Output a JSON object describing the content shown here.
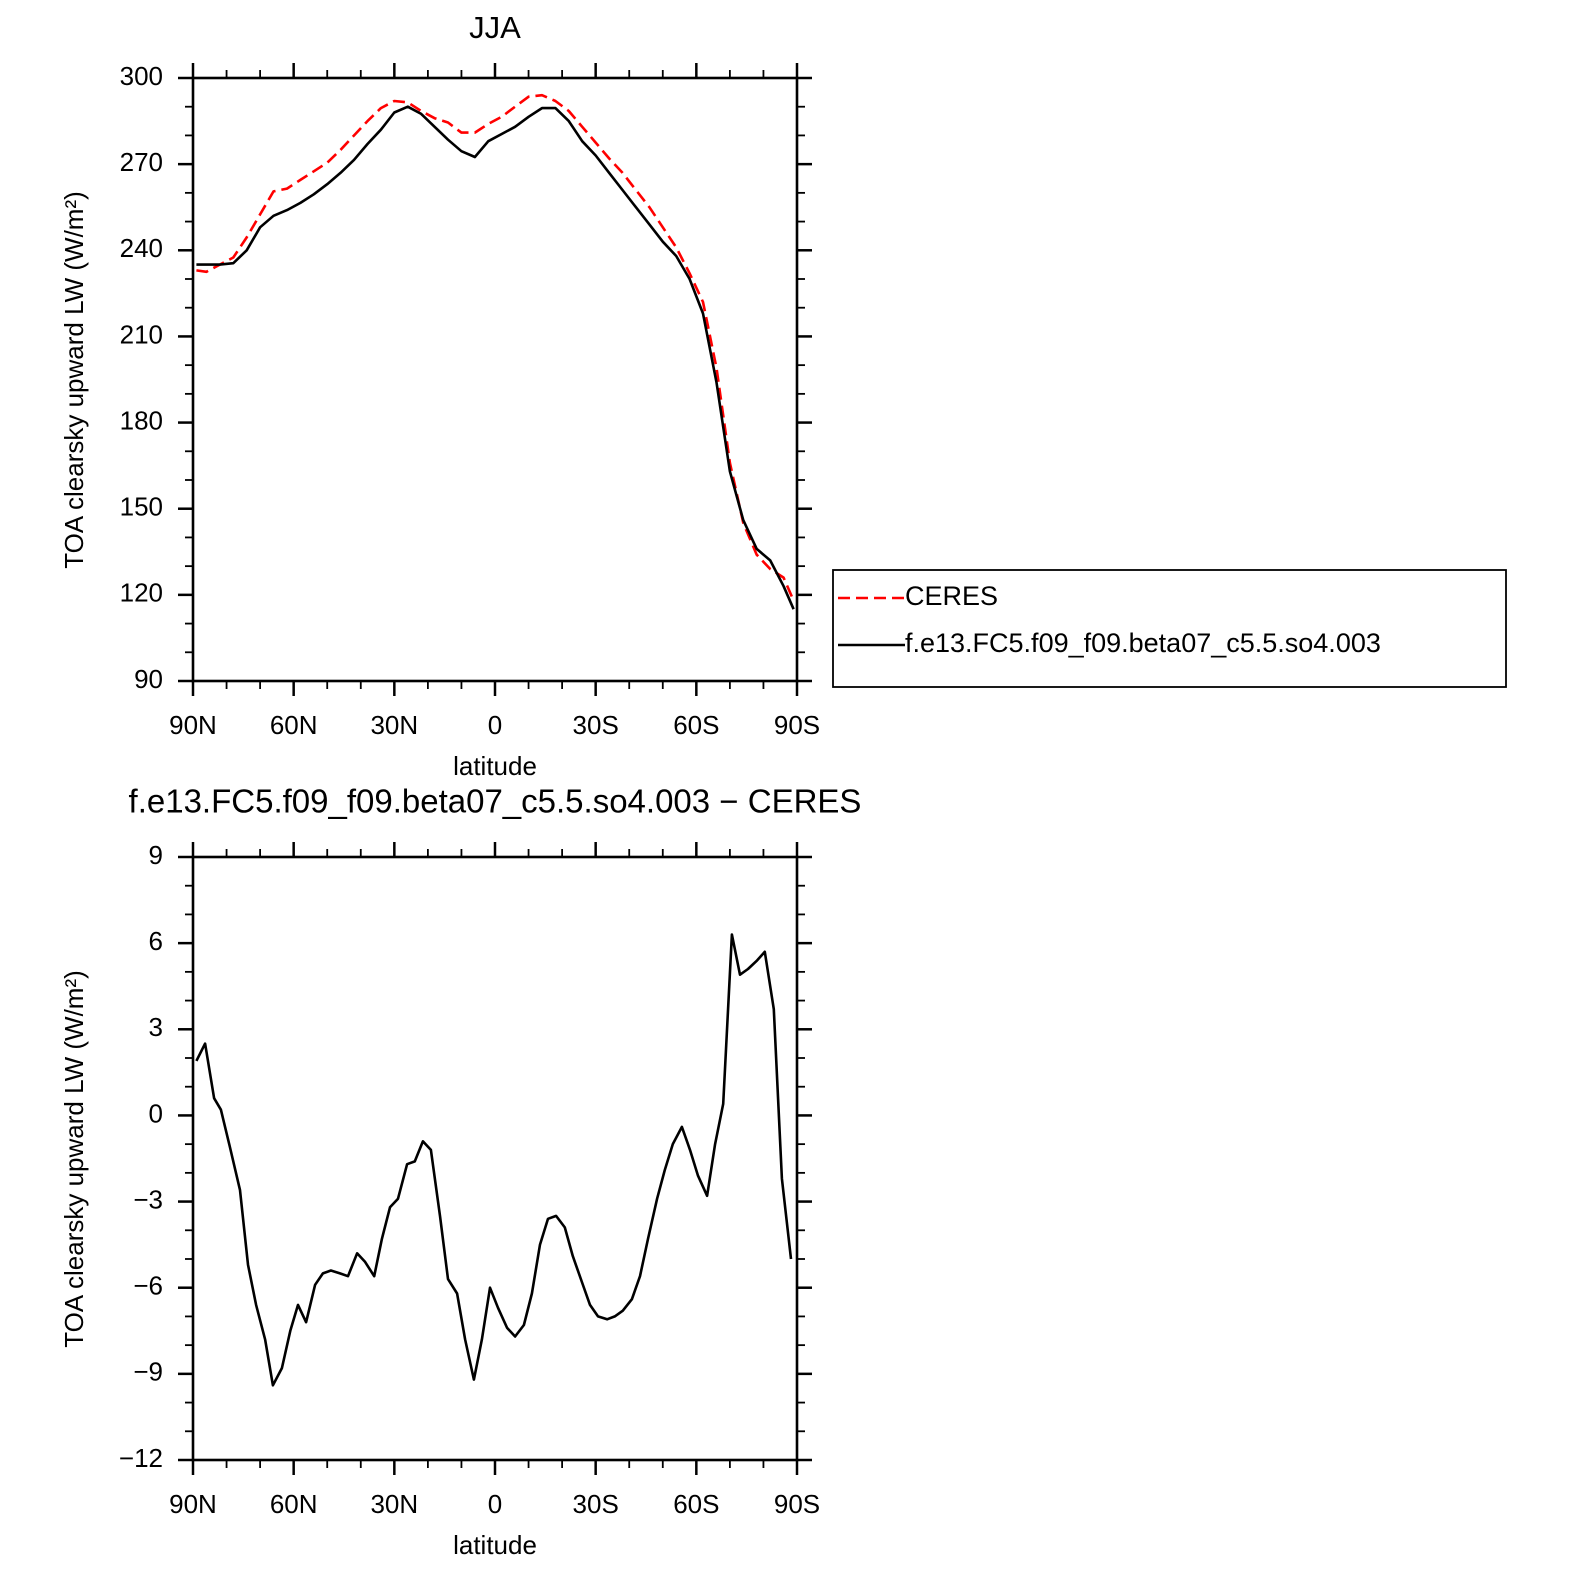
{
  "chart_data": [
    {
      "type": "line",
      "title": "JJA",
      "xlabel": "latitude",
      "ylabel": "TOA clearsky upward LW (W/m²)",
      "x": [
        89,
        86,
        82,
        78,
        74,
        70,
        66,
        62,
        58,
        54,
        50,
        46,
        42,
        38,
        34,
        30,
        26,
        22,
        18,
        14,
        10,
        6,
        2,
        -2,
        -6,
        -10,
        -14,
        -18,
        -22,
        -26,
        -30,
        -34,
        -38,
        -42,
        -46,
        -50,
        -54,
        -58,
        -62,
        -66,
        -70,
        -74,
        -78,
        -82,
        -86,
        -89
      ],
      "series": [
        {
          "name": "CERES",
          "color": "#ff0000",
          "linestyle": "dashed",
          "values": [
            233,
            232.5,
            235,
            237.5,
            244.5,
            252.5,
            260.5,
            261.5,
            264.5,
            267.5,
            270.5,
            275,
            280,
            285,
            289.5,
            292,
            291.5,
            288.5,
            286,
            284.5,
            281,
            281,
            284,
            286.5,
            290,
            293.5,
            294,
            292,
            288.5,
            283,
            277.5,
            272,
            267,
            261,
            255,
            248,
            241,
            232,
            222,
            199,
            166,
            145,
            134,
            129,
            126,
            118
          ]
        },
        {
          "name": "f.e13.FC5.f09_f09.beta07_c5.5.so4.003",
          "color": "#000000",
          "linestyle": "solid",
          "values": [
            235,
            235,
            235,
            235.5,
            240,
            248,
            252,
            254,
            256.5,
            259.5,
            263,
            267,
            271.5,
            277,
            282,
            288,
            290,
            287.5,
            283,
            278.5,
            274.5,
            272.5,
            278,
            280.5,
            283,
            286.5,
            289.5,
            289.5,
            285,
            278,
            273,
            267,
            261,
            255,
            249,
            243,
            238,
            230,
            218,
            194,
            163,
            146,
            136,
            132,
            123,
            115
          ]
        }
      ],
      "xlim": [
        90,
        -90
      ],
      "xticks": [
        {
          "value": 90,
          "label": "90N"
        },
        {
          "value": 60,
          "label": "60N"
        },
        {
          "value": 30,
          "label": "30N"
        },
        0,
        {
          "value": -30,
          "label": "30S"
        },
        {
          "value": -60,
          "label": "60S"
        },
        {
          "value": -90,
          "label": "90S"
        }
      ],
      "xminorticks": [
        80,
        70,
        50,
        40,
        20,
        10,
        -10,
        -20,
        -40,
        -50,
        -70,
        -80
      ],
      "ylim": [
        90,
        300
      ],
      "yticks": [
        90,
        120,
        150,
        180,
        210,
        240,
        270,
        300
      ],
      "yminorticks": [
        100,
        110,
        130,
        140,
        160,
        170,
        190,
        200,
        220,
        230,
        250,
        260,
        280,
        290
      ],
      "legend": "outside right"
    },
    {
      "type": "line",
      "title": "f.e13.FC5.f09_f09.beta07_c5.5.so4.003 − CERES",
      "xlabel": "latitude",
      "ylabel": "TOA clearsky upward LW (W/m²)",
      "x": [
        89,
        86.4,
        83.7,
        81.7,
        79,
        76,
        73.6,
        71.2,
        68.5,
        66.2,
        63.5,
        61,
        58.7,
        56.3,
        53.6,
        51.3,
        48.9,
        46.2,
        43.8,
        41.1,
        38.7,
        36,
        33.7,
        31.3,
        28.9,
        26.2,
        23.9,
        21.5,
        19.1,
        16.4,
        14,
        11.3,
        8.9,
        6.3,
        3.9,
        1.5,
        -0.9,
        -3.6,
        -6,
        -8.6,
        -11,
        -13.4,
        -15.8,
        -18.2,
        -20.8,
        -23.2,
        -25.9,
        -28.3,
        -30.7,
        -33.4,
        -35.7,
        -38.1,
        -40.8,
        -43.2,
        -45.6,
        -48.3,
        -50.6,
        -53,
        -55.7,
        -58.1,
        -60.5,
        -63.2,
        -65.6,
        -68,
        -70.6,
        -73,
        -75.4,
        -78.1,
        -80.4,
        -83.1,
        -85.5,
        -88.2
      ],
      "series": [
        {
          "name": "f.e13.FC5.f09_f09.beta07_c5.5.so4.003 − CERES",
          "color": "#000000",
          "linestyle": "solid",
          "values": [
            1.9,
            2.5,
            0.6,
            0.2,
            -1.1,
            -2.6,
            -5.2,
            -6.6,
            -7.8,
            -9.4,
            -8.8,
            -7.5,
            -6.6,
            -7.2,
            -5.9,
            -5.5,
            -5.4,
            -5.5,
            -5.6,
            -4.8,
            -5.1,
            -5.6,
            -4.3,
            -3.2,
            -2.9,
            -1.7,
            -1.6,
            -0.9,
            -1.2,
            -3.5,
            -5.7,
            -6.2,
            -7.8,
            -9.2,
            -7.8,
            -6,
            -6.7,
            -7.4,
            -7.7,
            -7.3,
            -6.2,
            -4.5,
            -3.6,
            -3.5,
            -3.9,
            -4.9,
            -5.8,
            -6.6,
            -7,
            -7.1,
            -7,
            -6.8,
            -6.4,
            -5.6,
            -4.3,
            -2.9,
            -1.9,
            -1,
            -0.4,
            -1.2,
            -2.1,
            -2.8,
            -1,
            0.4,
            6.3,
            4.9,
            5.1,
            5.4,
            5.7,
            3.7,
            -2.2,
            -5
          ]
        }
      ],
      "xlim": [
        90,
        -90
      ],
      "xticks": [
        {
          "value": 90,
          "label": "90N"
        },
        {
          "value": 60,
          "label": "60N"
        },
        {
          "value": 30,
          "label": "30N"
        },
        0,
        {
          "value": -30,
          "label": "30S"
        },
        {
          "value": -60,
          "label": "60S"
        },
        {
          "value": -90,
          "label": "90S"
        }
      ],
      "xminorticks": [
        80,
        70,
        50,
        40,
        20,
        10,
        -10,
        -20,
        -40,
        -50,
        -70,
        -80
      ],
      "ylim": [
        -12,
        9
      ],
      "yticks": [
        {
          "value": -12,
          "label": "−12"
        },
        {
          "value": -9,
          "label": "−9"
        },
        {
          "value": -6,
          "label": "−6"
        },
        {
          "value": -3,
          "label": "−3"
        },
        0,
        3,
        6,
        9
      ],
      "yminorticks": [
        -11,
        -10,
        -8,
        -7,
        -5,
        -4,
        -2,
        -1,
        1,
        2,
        4,
        5,
        7,
        8
      ]
    }
  ]
}
